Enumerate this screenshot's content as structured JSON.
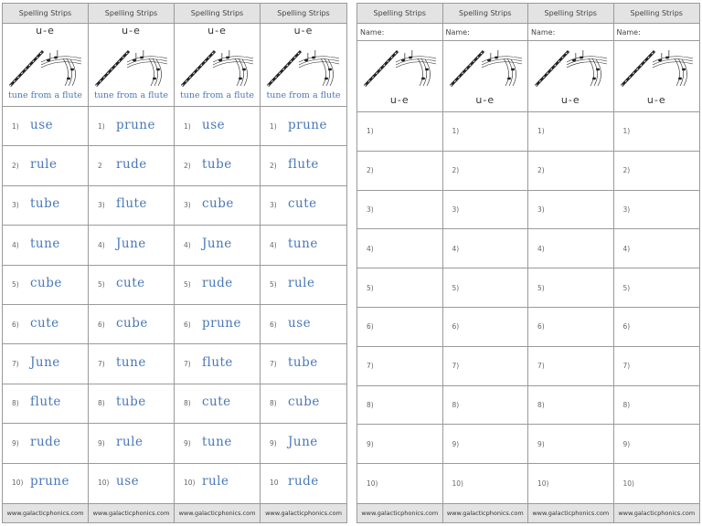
{
  "left": {
    "columns": [
      {
        "header": "Spelling Strips",
        "sound": "u-e",
        "caption": "tune from a flute",
        "footer": "www.galacticphonics.com",
        "items": [
          {
            "num": "1)",
            "word": "use"
          },
          {
            "num": "2)",
            "word": "rule"
          },
          {
            "num": "3)",
            "word": "tube"
          },
          {
            "num": "4)",
            "word": "tune"
          },
          {
            "num": "5)",
            "word": "cube"
          },
          {
            "num": "6)",
            "word": "cute"
          },
          {
            "num": "7)",
            "word": "June"
          },
          {
            "num": "8)",
            "word": "flute"
          },
          {
            "num": "9)",
            "word": "rude"
          },
          {
            "num": "10)",
            "word": "prune"
          }
        ]
      },
      {
        "header": "Spelling Strips",
        "sound": "u-e",
        "caption": "tune from a flute",
        "footer": "www.galacticphonics.com",
        "items": [
          {
            "num": "1)",
            "word": "prune"
          },
          {
            "num": "2",
            "word": "rude"
          },
          {
            "num": "3)",
            "word": "flute"
          },
          {
            "num": "4)",
            "word": "June"
          },
          {
            "num": "5)",
            "word": "cute"
          },
          {
            "num": "6)",
            "word": "cube"
          },
          {
            "num": "7)",
            "word": "tune"
          },
          {
            "num": "8)",
            "word": "tube"
          },
          {
            "num": "9)",
            "word": "rule"
          },
          {
            "num": "10)",
            "word": "use"
          }
        ]
      },
      {
        "header": "Spelling Strips",
        "sound": "u-e",
        "caption": "tune from a flute",
        "footer": "www.galacticphonics.com",
        "items": [
          {
            "num": "1)",
            "word": "use"
          },
          {
            "num": "2)",
            "word": "tube"
          },
          {
            "num": "3)",
            "word": "cube"
          },
          {
            "num": "4)",
            "word": "June"
          },
          {
            "num": "5)",
            "word": "rude"
          },
          {
            "num": "6)",
            "word": "prune"
          },
          {
            "num": "7)",
            "word": "flute"
          },
          {
            "num": "8)",
            "word": "cute"
          },
          {
            "num": "9)",
            "word": "tune"
          },
          {
            "num": "10)",
            "word": "rule"
          }
        ]
      },
      {
        "header": "Spelling Strips",
        "sound": "u-e",
        "caption": "tune from a flute",
        "footer": "www.galacticphonics.com",
        "items": [
          {
            "num": "1)",
            "word": "prune"
          },
          {
            "num": "2)",
            "word": "flute"
          },
          {
            "num": "3)",
            "word": "cute"
          },
          {
            "num": "4)",
            "word": "tune"
          },
          {
            "num": "5)",
            "word": "rule"
          },
          {
            "num": "6)",
            "word": "use"
          },
          {
            "num": "7)",
            "word": "tube"
          },
          {
            "num": "8)",
            "word": "cube"
          },
          {
            "num": "9)",
            "word": "June"
          },
          {
            "num": "10",
            "word": "rude"
          }
        ]
      }
    ]
  },
  "right": {
    "columns": [
      {
        "header": "Spelling Strips",
        "name_label": "Name:",
        "sound": "u-e",
        "footer": "www.galacticphonics.com",
        "numbers": [
          "1)",
          "2)",
          "3)",
          "4)",
          "5)",
          "6)",
          "7)",
          "8)",
          "9)",
          "10)"
        ]
      },
      {
        "header": "Spelling Strips",
        "name_label": "Name:",
        "sound": "u-e",
        "footer": "www.galacticphonics.com",
        "numbers": [
          "1)",
          "2)",
          "3)",
          "4)",
          "5)",
          "6)",
          "7)",
          "8)",
          "9)",
          "10)"
        ]
      },
      {
        "header": "Spelling Strips",
        "name_label": "Name:",
        "sound": "u-e",
        "footer": "www.galacticphonics.com",
        "numbers": [
          "1)",
          "2)",
          "3)",
          "4)",
          "5)",
          "6)",
          "7)",
          "8)",
          "9)",
          "10)"
        ]
      },
      {
        "header": "Spelling Strips",
        "name_label": "Name:",
        "sound": "u-e",
        "footer": "www.galacticphonics.com",
        "numbers": [
          "1)",
          "2)",
          "3)",
          "4)",
          "5)",
          "6)",
          "7)",
          "8)",
          "9)",
          "10)"
        ]
      }
    ]
  }
}
